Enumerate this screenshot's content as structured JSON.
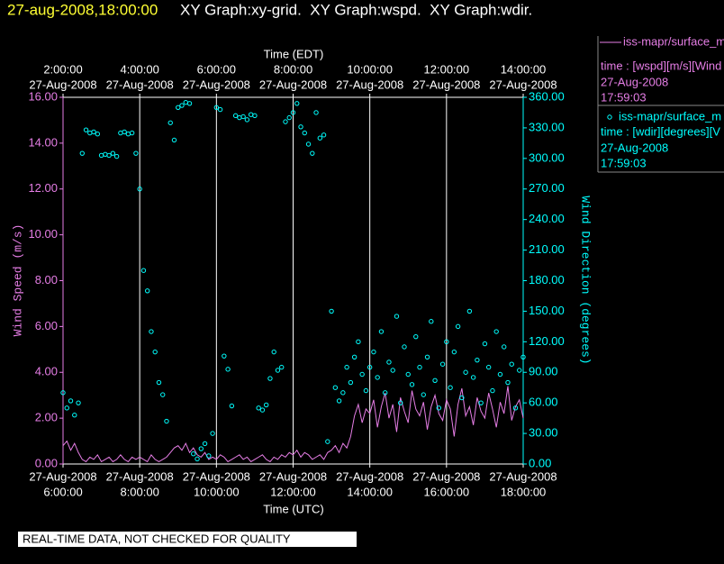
{
  "chart_data": {
    "type": "line",
    "title_time": "27-aug-2008,18:00:00",
    "title": "XY Graph:xy-grid.  XY Graph:wspd.  XY Graph:wdir.",
    "x_label": "Time (UTC)",
    "x2_label": "Time (EDT)",
    "y_label": "Wind Speed (m/s)",
    "y2_label": "Wind Direction (degrees)",
    "note": "REAL-TIME DATA, NOT CHECKED FOR QUALITY",
    "grid": true,
    "xlim": [
      "2008-08-27T06:00",
      "2008-08-27T18:00"
    ],
    "xticks": [
      {
        "value": "2008-08-27T06:00",
        "date": "27-Aug-2008",
        "label": "6:00:00"
      },
      {
        "value": "2008-08-27T08:00",
        "date": "27-Aug-2008",
        "label": "8:00:00"
      },
      {
        "value": "2008-08-27T10:00",
        "date": "27-Aug-2008",
        "label": "10:00:00"
      },
      {
        "value": "2008-08-27T12:00",
        "date": "27-Aug-2008",
        "label": "12:00:00"
      },
      {
        "value": "2008-08-27T14:00",
        "date": "27-Aug-2008",
        "label": "14:00:00"
      },
      {
        "value": "2008-08-27T16:00",
        "date": "27-Aug-2008",
        "label": "16:00:00"
      },
      {
        "value": "2008-08-27T18:00",
        "date": "27-Aug-2008",
        "label": "18:00:00"
      }
    ],
    "x2lim": [
      "2008-08-27T02:00",
      "2008-08-27T14:00"
    ],
    "x2ticks": [
      {
        "value": "2008-08-27T02:00",
        "date": "27-Aug-2008",
        "label": "2:00:00"
      },
      {
        "value": "2008-08-27T04:00",
        "date": "27-Aug-2008",
        "label": "4:00:00"
      },
      {
        "value": "2008-08-27T06:00",
        "date": "27-Aug-2008",
        "label": "6:00:00"
      },
      {
        "value": "2008-08-27T08:00",
        "date": "27-Aug-2008",
        "label": "8:00:00"
      },
      {
        "value": "2008-08-27T10:00",
        "date": "27-Aug-2008",
        "label": "10:00:00"
      },
      {
        "value": "2008-08-27T12:00",
        "date": "27-Aug-2008",
        "label": "12:00:00"
      },
      {
        "value": "2008-08-27T14:00",
        "date": "27-Aug-2008",
        "label": "14:00:00"
      }
    ],
    "ylim": [
      0,
      16
    ],
    "yticks": [
      {
        "value": 0,
        "label": "0.00"
      },
      {
        "value": 2,
        "label": "2.00"
      },
      {
        "value": 4,
        "label": "4.00"
      },
      {
        "value": 6,
        "label": "6.00"
      },
      {
        "value": 8,
        "label": "8.00"
      },
      {
        "value": 10,
        "label": "10.00"
      },
      {
        "value": 12,
        "label": "12.00"
      },
      {
        "value": 14,
        "label": "14.00"
      },
      {
        "value": 16,
        "label": "16.00"
      }
    ],
    "y2lim": [
      0,
      360
    ],
    "y2ticks": [
      {
        "value": 0,
        "label": "0.00"
      },
      {
        "value": 30,
        "label": "30.00"
      },
      {
        "value": 60,
        "label": "60.00"
      },
      {
        "value": 90,
        "label": "90.00"
      },
      {
        "value": 120,
        "label": "120.00"
      },
      {
        "value": 150,
        "label": "150.00"
      },
      {
        "value": 180,
        "label": "180.00"
      },
      {
        "value": 210,
        "label": "210.00"
      },
      {
        "value": 240,
        "label": "240.00"
      },
      {
        "value": 270,
        "label": "270.00"
      },
      {
        "value": 300,
        "label": "300.00"
      },
      {
        "value": 330,
        "label": "330.00"
      },
      {
        "value": 360,
        "label": "360.00"
      }
    ],
    "x": [
      "2008-08-27T06:00",
      "2008-08-27T06:06",
      "2008-08-27T06:12",
      "2008-08-27T06:18",
      "2008-08-27T06:24",
      "2008-08-27T06:30",
      "2008-08-27T06:36",
      "2008-08-27T06:42",
      "2008-08-27T06:48",
      "2008-08-27T06:54",
      "2008-08-27T07:00",
      "2008-08-27T07:06",
      "2008-08-27T07:12",
      "2008-08-27T07:18",
      "2008-08-27T07:24",
      "2008-08-27T07:30",
      "2008-08-27T07:36",
      "2008-08-27T07:42",
      "2008-08-27T07:48",
      "2008-08-27T07:54",
      "2008-08-27T08:00",
      "2008-08-27T08:06",
      "2008-08-27T08:12",
      "2008-08-27T08:18",
      "2008-08-27T08:24",
      "2008-08-27T08:30",
      "2008-08-27T08:36",
      "2008-08-27T08:42",
      "2008-08-27T08:48",
      "2008-08-27T08:54",
      "2008-08-27T09:00",
      "2008-08-27T09:06",
      "2008-08-27T09:12",
      "2008-08-27T09:18",
      "2008-08-27T09:24",
      "2008-08-27T09:30",
      "2008-08-27T09:36",
      "2008-08-27T09:42",
      "2008-08-27T09:48",
      "2008-08-27T09:54",
      "2008-08-27T10:00",
      "2008-08-27T10:06",
      "2008-08-27T10:12",
      "2008-08-27T10:18",
      "2008-08-27T10:24",
      "2008-08-27T10:30",
      "2008-08-27T10:36",
      "2008-08-27T10:42",
      "2008-08-27T10:48",
      "2008-08-27T10:54",
      "2008-08-27T11:00",
      "2008-08-27T11:06",
      "2008-08-27T11:12",
      "2008-08-27T11:18",
      "2008-08-27T11:24",
      "2008-08-27T11:30",
      "2008-08-27T11:36",
      "2008-08-27T11:42",
      "2008-08-27T11:48",
      "2008-08-27T11:54",
      "2008-08-27T12:00",
      "2008-08-27T12:06",
      "2008-08-27T12:12",
      "2008-08-27T12:18",
      "2008-08-27T12:24",
      "2008-08-27T12:30",
      "2008-08-27T12:36",
      "2008-08-27T12:42",
      "2008-08-27T12:48",
      "2008-08-27T12:54",
      "2008-08-27T13:00",
      "2008-08-27T13:06",
      "2008-08-27T13:12",
      "2008-08-27T13:18",
      "2008-08-27T13:24",
      "2008-08-27T13:30",
      "2008-08-27T13:36",
      "2008-08-27T13:42",
      "2008-08-27T13:48",
      "2008-08-27T13:54",
      "2008-08-27T14:00",
      "2008-08-27T14:06",
      "2008-08-27T14:12",
      "2008-08-27T14:18",
      "2008-08-27T14:24",
      "2008-08-27T14:30",
      "2008-08-27T14:36",
      "2008-08-27T14:42",
      "2008-08-27T14:48",
      "2008-08-27T14:54",
      "2008-08-27T15:00",
      "2008-08-27T15:06",
      "2008-08-27T15:12",
      "2008-08-27T15:18",
      "2008-08-27T15:24",
      "2008-08-27T15:30",
      "2008-08-27T15:36",
      "2008-08-27T15:42",
      "2008-08-27T15:48",
      "2008-08-27T15:54",
      "2008-08-27T16:00",
      "2008-08-27T16:06",
      "2008-08-27T16:12",
      "2008-08-27T16:18",
      "2008-08-27T16:24",
      "2008-08-27T16:30",
      "2008-08-27T16:36",
      "2008-08-27T16:42",
      "2008-08-27T16:48",
      "2008-08-27T16:54",
      "2008-08-27T17:00",
      "2008-08-27T17:06",
      "2008-08-27T17:12",
      "2008-08-27T17:18",
      "2008-08-27T17:24",
      "2008-08-27T17:30",
      "2008-08-27T17:36",
      "2008-08-27T17:42",
      "2008-08-27T17:48",
      "2008-08-27T17:54",
      "2008-08-27T18:00"
    ],
    "series": [
      {
        "name": "iss-mapr/surface_m",
        "detail": "time : [wspd][m/s][Wind",
        "date": "27-Aug-2008",
        "time": "17:59:03",
        "color": "#e67ee6",
        "mark": "line",
        "axis": "y",
        "values": [
          0.8,
          1.0,
          0.6,
          0.9,
          0.5,
          0.2,
          0.1,
          0.3,
          0.2,
          0.4,
          0.1,
          0.2,
          0.3,
          0.1,
          0.2,
          0.4,
          0.2,
          0.1,
          0.3,
          0.2,
          0.3,
          0.2,
          0.1,
          0.4,
          0.2,
          0.1,
          0.2,
          0.3,
          0.5,
          0.7,
          0.8,
          0.6,
          0.9,
          0.5,
          0.7,
          0.4,
          0.3,
          0.5,
          0.2,
          0.3,
          0.2,
          0.4,
          0.3,
          0.1,
          0.2,
          0.3,
          0.4,
          0.2,
          0.3,
          0.1,
          0.2,
          0.3,
          0.4,
          0.2,
          0.1,
          0.3,
          0.2,
          0.4,
          0.3,
          0.5,
          0.4,
          0.6,
          0.3,
          0.5,
          0.4,
          0.2,
          0.3,
          0.4,
          0.2,
          0.5,
          0.6,
          0.8,
          0.5,
          0.9,
          0.7,
          1.2,
          2.1,
          2.6,
          1.8,
          2.4,
          2.2,
          2.8,
          1.6,
          2.5,
          3.1,
          2.0,
          2.6,
          1.4,
          2.9,
          2.3,
          1.8,
          3.2,
          2.4,
          2.1,
          2.7,
          1.5,
          2.5,
          3.0,
          2.2,
          1.9,
          2.8,
          2.4,
          1.2,
          2.6,
          3.3,
          2.1,
          2.5,
          1.7,
          2.9,
          2.3,
          2.0,
          3.1,
          2.4,
          1.6,
          2.7,
          2.2,
          3.4,
          1.9,
          2.5,
          2.8,
          2.0
        ]
      },
      {
        "name": "iss-mapr/surface_m",
        "detail": "time : [wdir][degrees][V",
        "date": "27-Aug-2008",
        "time": "17:59:03",
        "color": "#00ffff",
        "mark": "scatter",
        "axis": "y2",
        "values": [
          70,
          55,
          62,
          48,
          60,
          305,
          328,
          325,
          326,
          324,
          303,
          304,
          303,
          305,
          302,
          325,
          326,
          324,
          325,
          305,
          270,
          190,
          170,
          130,
          110,
          80,
          68,
          42,
          335,
          318,
          350,
          352,
          355,
          354,
          10,
          5,
          15,
          20,
          8,
          30,
          350,
          348,
          106,
          93,
          57,
          342,
          340,
          341,
          338,
          343,
          342,
          55,
          53,
          58,
          84,
          110,
          92,
          95,
          336,
          340,
          345,
          354,
          331,
          325,
          314,
          305,
          345,
          320,
          323,
          22,
          150,
          75,
          62,
          70,
          95,
          80,
          105,
          120,
          88,
          72,
          95,
          110,
          85,
          130,
          70,
          100,
          92,
          145,
          60,
          115,
          88,
          78,
          125,
          95,
          68,
          105,
          140,
          82,
          55,
          98,
          120,
          75,
          110,
          135,
          65,
          90,
          150,
          85,
          102,
          60,
          118,
          95,
          72,
          130,
          88,
          115,
          80,
          98,
          55,
          92,
          105
        ]
      }
    ]
  }
}
